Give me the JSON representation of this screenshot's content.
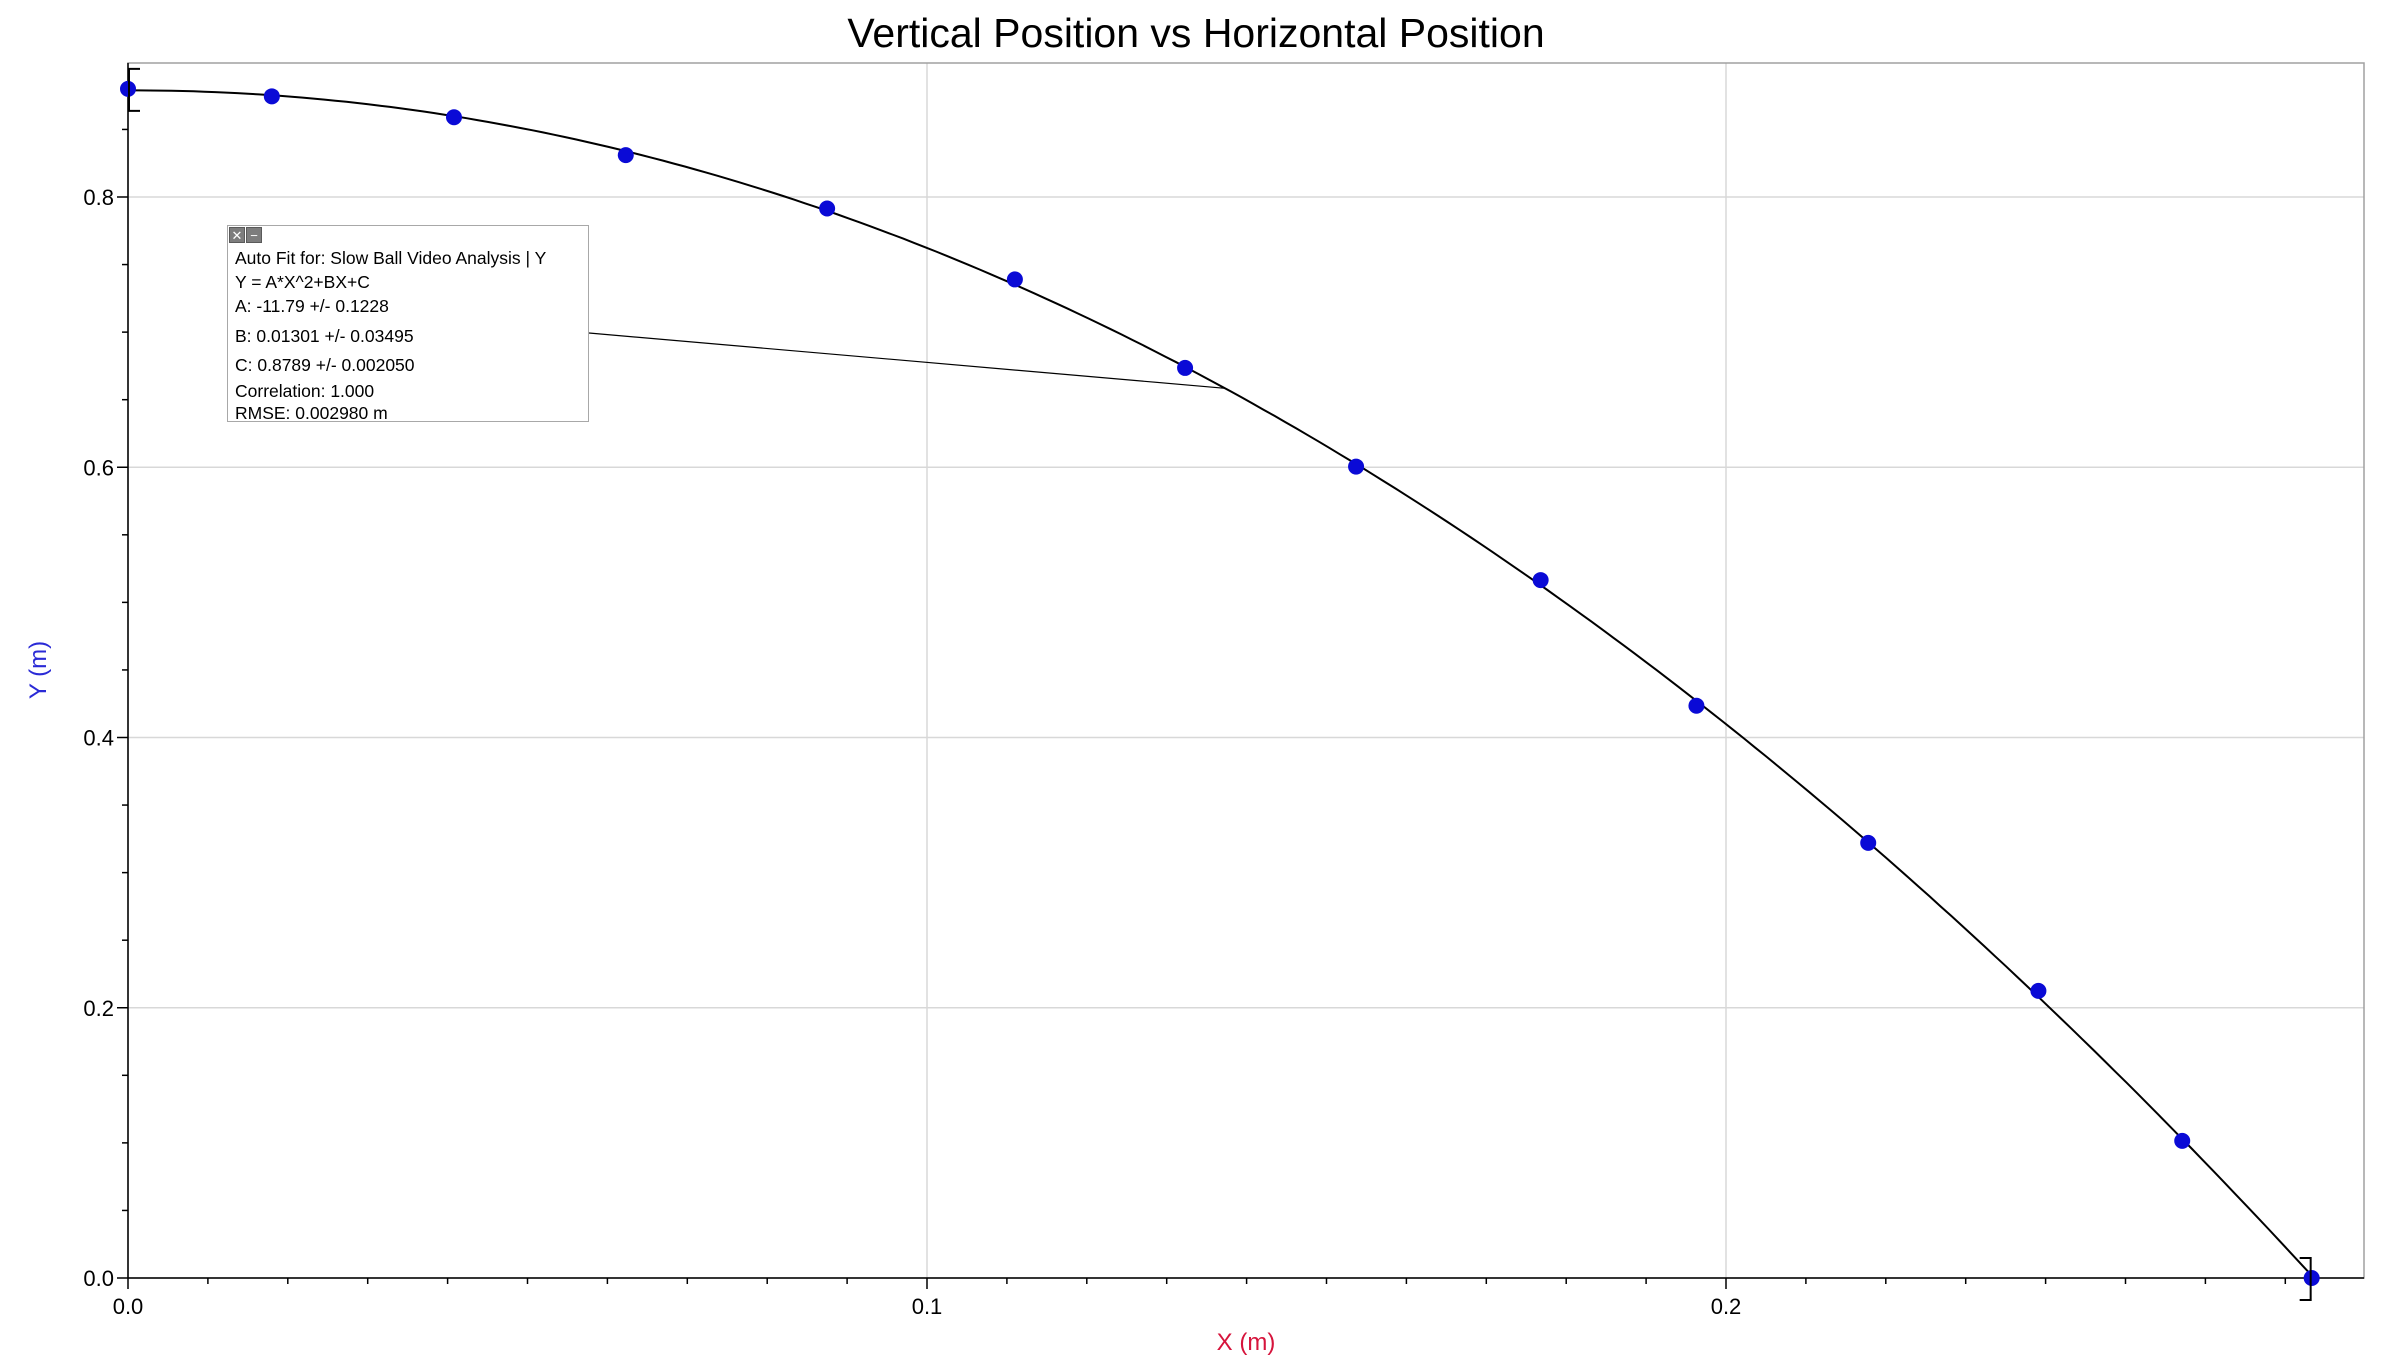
{
  "chart_data": {
    "type": "scatter",
    "title": "Vertical Position vs Horizontal Position",
    "xlabel": "X (m)",
    "ylabel": "Y (m)",
    "xlim": [
      0,
      0.279
    ],
    "ylim": [
      0,
      0.9
    ],
    "x_ticks": [
      "0.0",
      "0.1",
      "0.2"
    ],
    "y_ticks": [
      "0.0",
      "0.2",
      "0.4",
      "0.6",
      "0.8"
    ],
    "grid": true,
    "series": [
      {
        "x": [
          0.0,
          0.018,
          0.0408,
          0.0623,
          0.0875,
          0.111,
          0.1323,
          0.1537,
          0.1768,
          0.1963,
          0.2178,
          0.2391,
          0.2571,
          0.2733
        ],
        "y": [
          0.88,
          0.8745,
          0.859,
          0.831,
          0.7915,
          0.739,
          0.6735,
          0.6005,
          0.5165,
          0.4235,
          0.322,
          0.2125,
          0.1015,
          0.0
        ]
      }
    ],
    "fit": {
      "A": -11.79,
      "B": 0.01301,
      "C": 0.8789
    },
    "colors": {
      "points": "#0a0ad6",
      "fit_line": "#000000",
      "grid": "#d8d8d8",
      "xlabel": "#d6143c",
      "ylabel": "#2a2ad6"
    }
  },
  "fit_box": {
    "title": "Auto Fit for: Slow Ball Video Analysis | Y",
    "equation": "Y = A*X^2+BX+C",
    "a": "A: -11.79 +/- 0.1228",
    "b": "B: 0.01301 +/- 0.03495",
    "c": "C: 0.8789 +/- 0.002050",
    "correlation": "Correlation: 1.000",
    "rmse": "RMSE: 0.002980 m",
    "close_glyph": "✕",
    "minimize_glyph": "−"
  }
}
